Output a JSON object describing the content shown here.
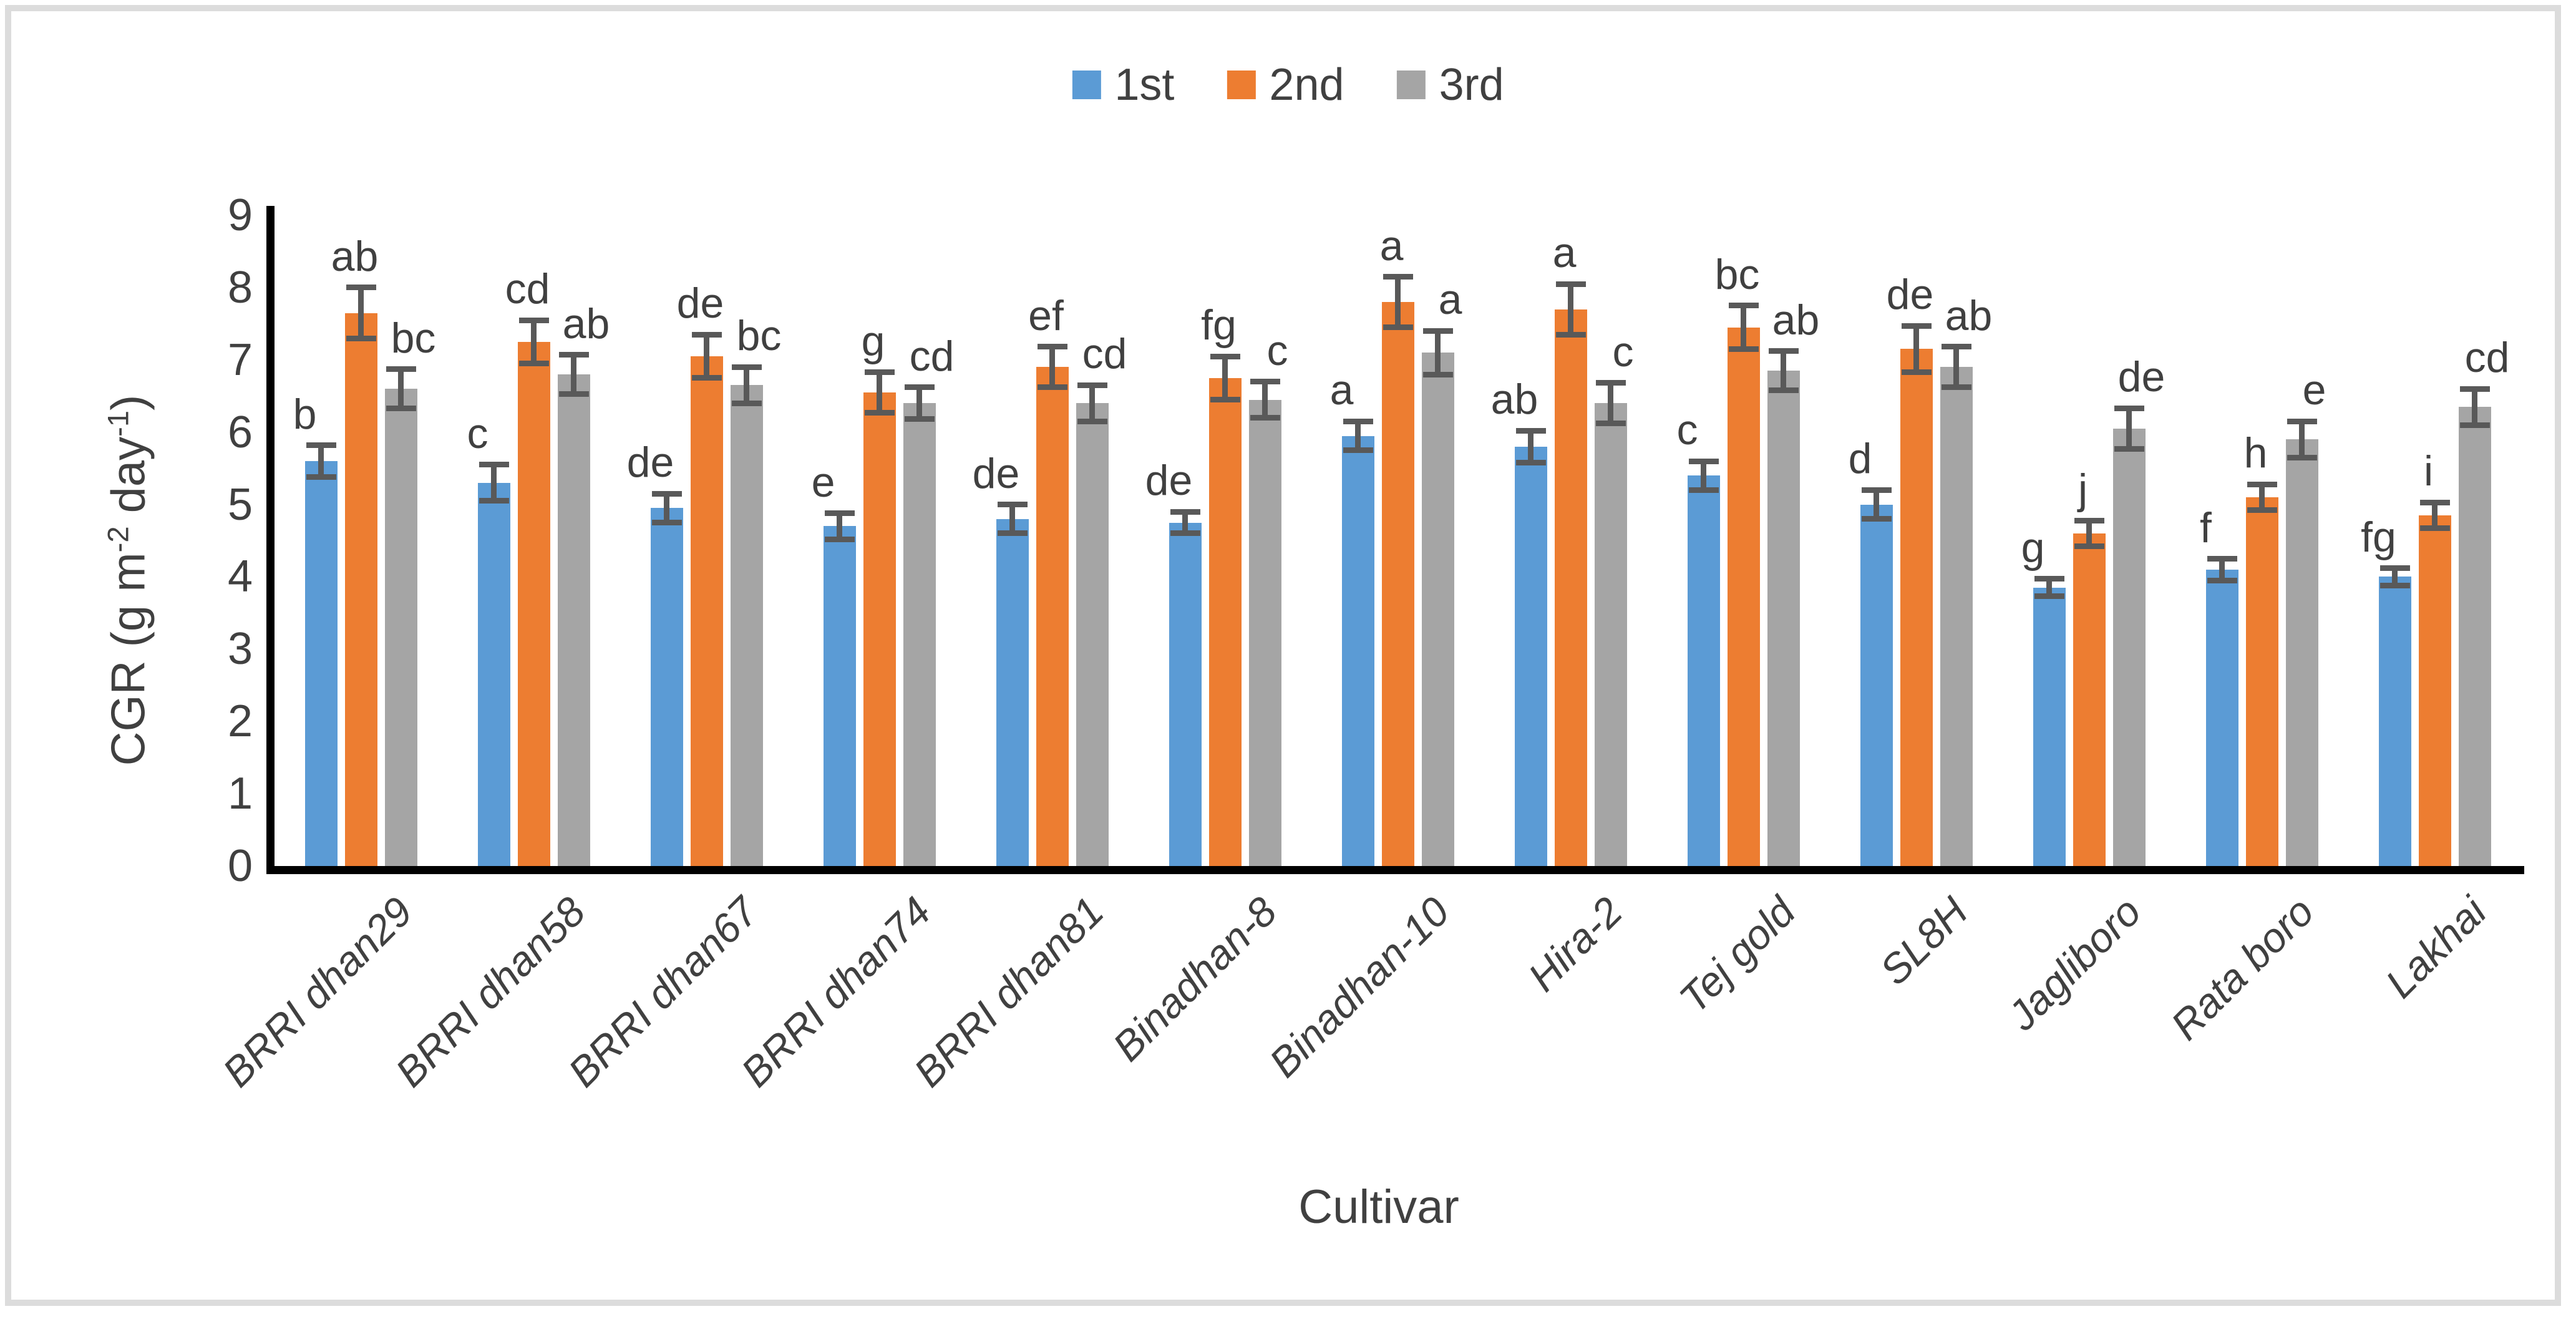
{
  "figure": {
    "background": "#ffffff",
    "border_color": "#dcdcdc",
    "text_color": "#404040",
    "axis_color": "#000000",
    "error_bar_color": "#595959"
  },
  "legend": {
    "position": "top-center",
    "items": [
      {
        "label": "1st",
        "color": "#5B9BD5"
      },
      {
        "label": "2nd",
        "color": "#ED7D31"
      },
      {
        "label": "3rd",
        "color": "#A5A5A5"
      }
    ]
  },
  "y_axis": {
    "title": "CGR (g m⁻² day⁻¹)",
    "title_parts": [
      {
        "t": "CGR (g m"
      },
      {
        "t": "-2",
        "sup": true
      },
      {
        "t": " day"
      },
      {
        "t": "-1",
        "sup": true
      },
      {
        "t": ")"
      }
    ],
    "min": 0,
    "max": 9
  },
  "x_axis": {
    "title": "Cultivar"
  },
  "chart_data": {
    "type": "bar",
    "title": "",
    "xlabel": "Cultivar",
    "ylabel": "CGR (g m⁻² day⁻¹)",
    "ylim": [
      0,
      9
    ],
    "yticks": [
      0,
      1,
      2,
      3,
      4,
      5,
      6,
      7,
      8,
      9
    ],
    "grid": false,
    "legend_position": "top",
    "categories": [
      "BRRI dhan29",
      "BRRI dhan58",
      "BRRI dhan67",
      "BRRI dhan74",
      "BRRI dhan81",
      "Binadhan-8",
      "Binadhan-10",
      "Hira-2",
      "Tej gold",
      "SL8H",
      "Jagliboro",
      "Rata boro",
      "Lakhai"
    ],
    "series": [
      {
        "name": "1st",
        "color": "#5B9BD5",
        "values": [
          5.6,
          5.3,
          4.95,
          4.7,
          4.8,
          4.75,
          5.95,
          5.8,
          5.4,
          5.0,
          3.85,
          4.1,
          4.0
        ],
        "errors": [
          0.22,
          0.25,
          0.2,
          0.18,
          0.2,
          0.15,
          0.2,
          0.22,
          0.2,
          0.2,
          0.12,
          0.15,
          0.12
        ],
        "letters": [
          "b",
          "c",
          "de",
          "e",
          "de",
          "de",
          "a",
          "ab",
          "c",
          "d",
          "g",
          "f",
          "fg"
        ]
      },
      {
        "name": "2nd",
        "color": "#ED7D31",
        "values": [
          7.65,
          7.25,
          7.05,
          6.55,
          6.9,
          6.75,
          7.8,
          7.7,
          7.45,
          7.15,
          4.6,
          5.1,
          4.85
        ],
        "errors": [
          0.35,
          0.3,
          0.3,
          0.28,
          0.28,
          0.3,
          0.35,
          0.35,
          0.3,
          0.32,
          0.18,
          0.18,
          0.18
        ],
        "letters": [
          "ab",
          "cd",
          "de",
          "g",
          "ef",
          "fg",
          "a",
          "a",
          "bc",
          "de",
          "j",
          "h",
          "i"
        ]
      },
      {
        "name": "3rd",
        "color": "#A5A5A5",
        "values": [
          6.6,
          6.8,
          6.65,
          6.4,
          6.4,
          6.45,
          7.1,
          6.4,
          6.85,
          6.9,
          6.05,
          5.9,
          6.35
        ],
        "errors": [
          0.27,
          0.27,
          0.25,
          0.22,
          0.25,
          0.25,
          0.3,
          0.28,
          0.27,
          0.28,
          0.28,
          0.25,
          0.25
        ],
        "letters": [
          "bc",
          "ab",
          "bc",
          "cd",
          "cd",
          "c",
          "a",
          "c",
          "ab",
          "ab",
          "de",
          "e",
          "cd"
        ]
      }
    ]
  }
}
